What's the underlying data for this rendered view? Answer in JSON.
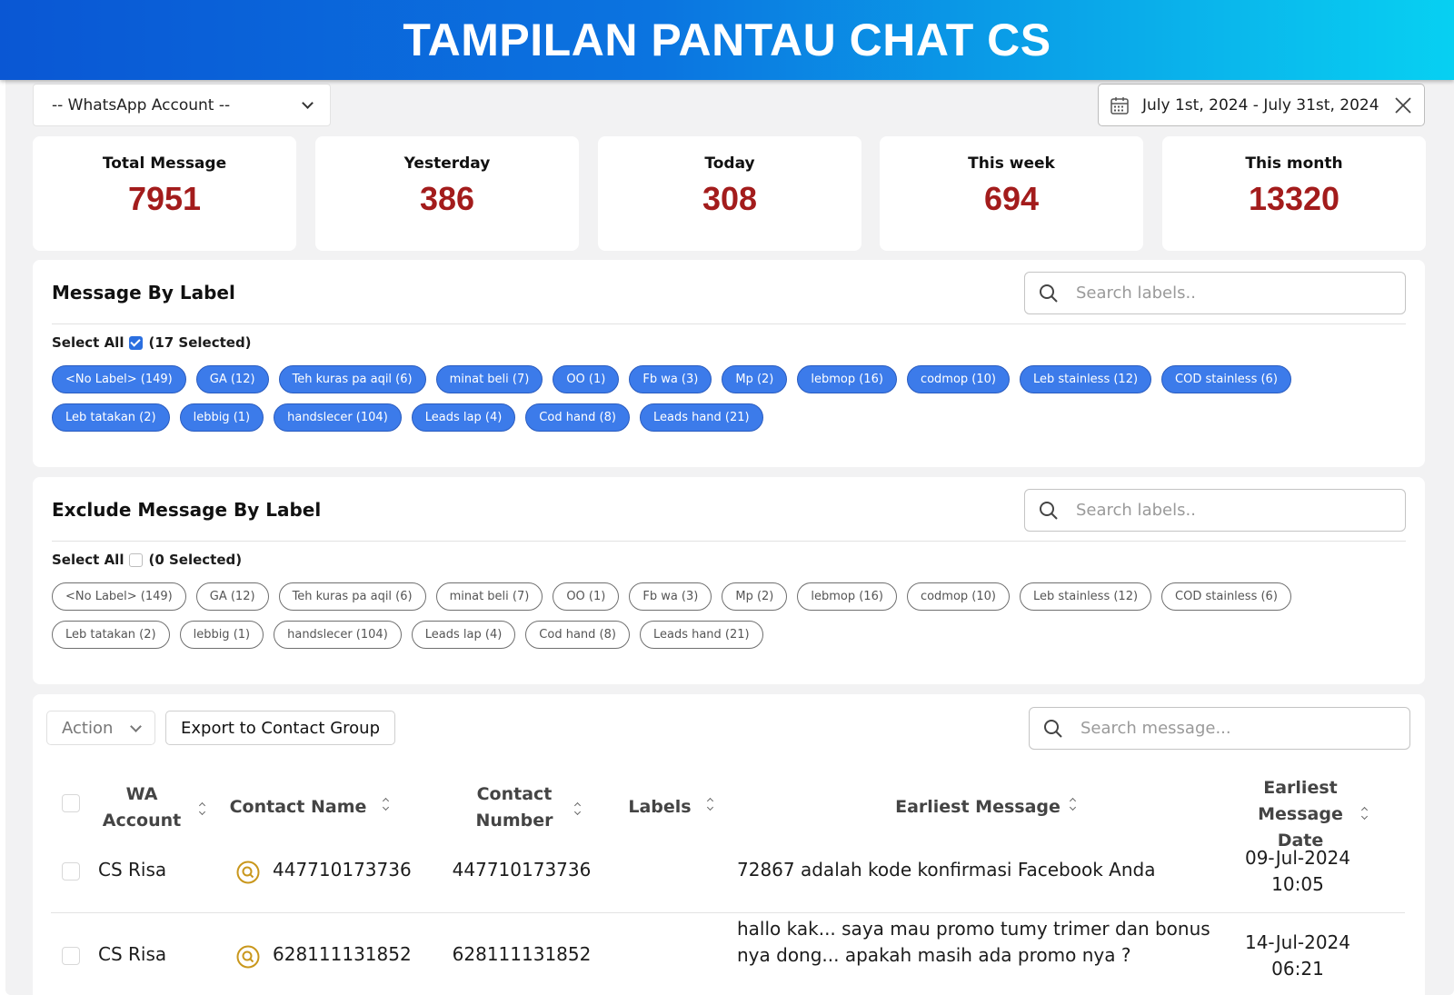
{
  "banner": {
    "title": "TAMPILAN PANTAU CHAT CS"
  },
  "wa_account": {
    "placeholder": "-- WhatsApp Account --"
  },
  "date_range": {
    "value": "July 1st, 2024 - July 31st, 2024"
  },
  "stats": [
    {
      "label": "Total Message",
      "value": "7951"
    },
    {
      "label": "Yesterday",
      "value": "386"
    },
    {
      "label": "Today",
      "value": "308"
    },
    {
      "label": "This week",
      "value": "694"
    },
    {
      "label": "This month",
      "value": "13320"
    }
  ],
  "include_labels": {
    "title": "Message By Label",
    "search_placeholder": "Search labels..",
    "select_all_label": "Select All",
    "selected_count": "(17 Selected)",
    "checked": true,
    "chips": [
      "<No Label> (149)",
      "GA (12)",
      "Teh kuras pa aqil (6)",
      "minat beli (7)",
      "OO (1)",
      "Fb wa (3)",
      "Mp (2)",
      "lebmop (16)",
      "codmop (10)",
      "Leb stainless (12)",
      "COD stainless (6)",
      "Leb tatakan (2)",
      "lebbig (1)",
      "handslecer (104)",
      "Leads lap (4)",
      "Cod hand (8)",
      "Leads hand (21)"
    ]
  },
  "exclude_labels": {
    "title": "Exclude Message By Label",
    "search_placeholder": "Search labels..",
    "select_all_label": "Select All",
    "selected_count": "(0 Selected)",
    "checked": false,
    "chips": [
      "<No Label> (149)",
      "GA (12)",
      "Teh kuras pa aqil (6)",
      "minat beli (7)",
      "OO (1)",
      "Fb wa (3)",
      "Mp (2)",
      "lebmop (16)",
      "codmop (10)",
      "Leb stainless (12)",
      "COD stainless (6)",
      "Leb tatakan (2)",
      "lebbig (1)",
      "handslecer (104)",
      "Leads lap (4)",
      "Cod hand (8)",
      "Leads hand (21)"
    ]
  },
  "table": {
    "action_label": "Action",
    "export_label": "Export to Contact Group",
    "search_placeholder": "Search message...",
    "columns": {
      "wa_account": "WA Account",
      "contact_name": "Contact Name",
      "contact_number": "Contact Number",
      "labels": "Labels",
      "earliest_message": "Earliest Message",
      "earliest_date": "Earliest Message Date"
    },
    "rows": [
      {
        "wa_account": "CS Risa",
        "contact_name": "447710173736",
        "contact_number": "447710173736",
        "labels": "",
        "earliest_message": "72867 adalah kode konfirmasi Facebook Anda",
        "date": "09-Jul-2024",
        "time": "10:05"
      },
      {
        "wa_account": "CS Risa",
        "contact_name": "628111131852",
        "contact_number": "628111131852",
        "labels": "",
        "earliest_message": "hallo kak... saya mau promo tumy trimer dan bonus nya dong... apakah masih ada promo nya ?",
        "date": "14-Jul-2024",
        "time": "06:21"
      }
    ]
  },
  "colors": {
    "accent": "#3c7bea",
    "stat_value": "#a31c1c",
    "contact_icon": "#c9971c"
  }
}
